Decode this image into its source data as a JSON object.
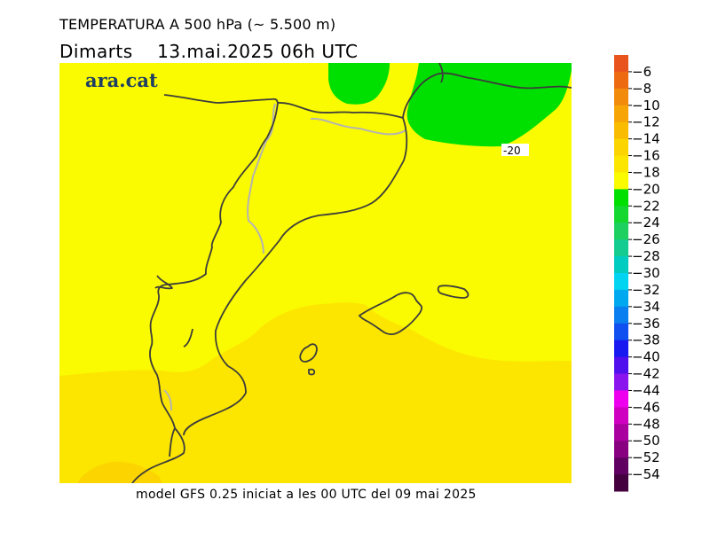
{
  "title": "TEMPERATURA A 500 hPa (~ 5.500 m)",
  "subtitle": {
    "day": "Dimarts",
    "datetime": "13.mai.2025 06h UTC"
  },
  "logo": "ara.cat",
  "footer": "model GFS 0.25 iniciat a les 00 UTC del 09 mai 2025",
  "contour_label": "-20",
  "legend": {
    "items": [
      {
        "label": "−6",
        "color": "#e8541c"
      },
      {
        "label": "−8",
        "color": "#ee6a10"
      },
      {
        "label": "−10",
        "color": "#f28a0c"
      },
      {
        "label": "−12",
        "color": "#f6a406"
      },
      {
        "label": "−14",
        "color": "#fabc00"
      },
      {
        "label": "−16",
        "color": "#fcd400"
      },
      {
        "label": "−18",
        "color": "#fce600"
      },
      {
        "label": "−20",
        "color": "#fafa00"
      },
      {
        "label": "−22",
        "color": "#00e000"
      },
      {
        "label": "−24",
        "color": "#14d830"
      },
      {
        "label": "−26",
        "color": "#1ed060"
      },
      {
        "label": "−28",
        "color": "#14cc90"
      },
      {
        "label": "−30",
        "color": "#00ccc0"
      },
      {
        "label": "−32",
        "color": "#00d4f0"
      },
      {
        "label": "−34",
        "color": "#00a8f0"
      },
      {
        "label": "−36",
        "color": "#0a80f0"
      },
      {
        "label": "−38",
        "color": "#1050f0"
      },
      {
        "label": "−40",
        "color": "#1818f0"
      },
      {
        "label": "−42",
        "color": "#5010ee"
      },
      {
        "label": "−44",
        "color": "#8a14ee"
      },
      {
        "label": "−46",
        "color": "#ee00ee"
      },
      {
        "label": "−48",
        "color": "#d000c0"
      },
      {
        "label": "−50",
        "color": "#aa00a0"
      },
      {
        "label": "−52",
        "color": "#880080"
      },
      {
        "label": "−54",
        "color": "#600060"
      },
      {
        "label": "",
        "color": "#44003e"
      }
    ]
  }
}
